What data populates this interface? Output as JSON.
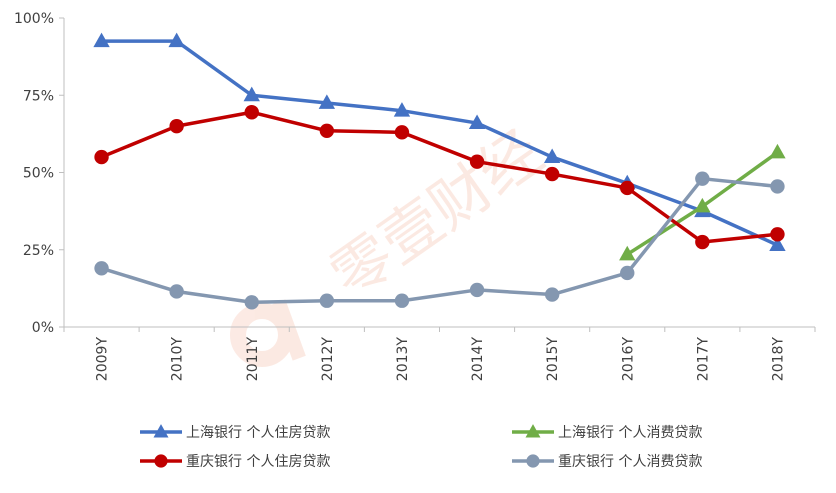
{
  "watermark": {
    "text": "零壹财经"
  },
  "chart_data": {
    "type": "line",
    "categories": [
      "2009Y",
      "2010Y",
      "2011Y",
      "2012Y",
      "2013Y",
      "2014Y",
      "2015Y",
      "2016Y",
      "2017Y",
      "2018Y"
    ],
    "ylim": [
      0,
      1
    ],
    "yticks": [
      0,
      0.25,
      0.5,
      0.75,
      1.0
    ],
    "ytick_labels": [
      "0%",
      "25%",
      "50%",
      "75%",
      "100%"
    ],
    "grid": false,
    "legend_position": "bottom",
    "series": [
      {
        "name": "上海银行 个人住房贷款",
        "color": "#4472C4",
        "marker": "triangle",
        "values": [
          0.925,
          0.925,
          0.75,
          0.725,
          0.7,
          0.66,
          0.55,
          0.465,
          0.375,
          0.265
        ]
      },
      {
        "name": "上海银行 个人消费贷款",
        "color": "#70AD47",
        "marker": "triangle",
        "values": [
          null,
          null,
          null,
          null,
          null,
          null,
          null,
          0.235,
          0.39,
          0.565
        ]
      },
      {
        "name": "重庆银行 个人住房贷款",
        "color": "#C00000",
        "marker": "circle",
        "values": [
          0.55,
          0.65,
          0.695,
          0.635,
          0.63,
          0.535,
          0.495,
          0.45,
          0.275,
          0.3
        ]
      },
      {
        "name": "重庆银行 个人消费贷款",
        "color": "#8497B0",
        "marker": "circle",
        "values": [
          0.19,
          0.115,
          0.08,
          0.085,
          0.085,
          0.12,
          0.105,
          0.175,
          0.48,
          0.455
        ]
      }
    ]
  }
}
